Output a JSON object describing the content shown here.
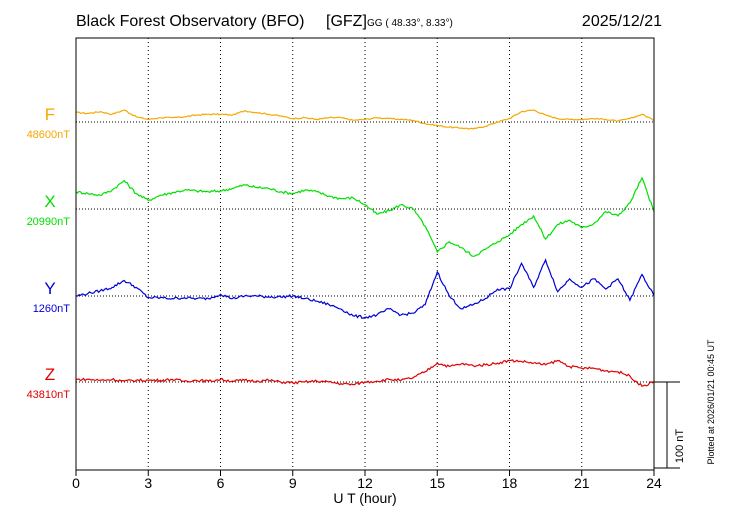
{
  "header": {
    "station": "Black Forest Observatory (BFO)",
    "agency": "[GFZ]",
    "coords": "GG ( 48.33°,   8.33°)",
    "date": "2025/12/21"
  },
  "footer_note": "Plotted at 2026/01/21 00:45 UT",
  "scale_label": "100 nT",
  "colors": {
    "F": "#f5a800",
    "X": "#00e000",
    "Y": "#0000d8",
    "Z": "#e00000",
    "axis": "#000000"
  },
  "chart_data": {
    "type": "line",
    "title": "Black Forest Observatory (BFO)",
    "xlabel": "U T (hour)",
    "ylabel": "",
    "xlim": [
      0,
      24
    ],
    "x_ticks": [
      "0",
      "3",
      "6",
      "9",
      "12",
      "15",
      "18",
      "21",
      "24"
    ],
    "grid": true,
    "scale_bar_nT": 100,
    "series": [
      {
        "name": "F",
        "baseline_label": "48600nT",
        "baseline_nT": 48600,
        "x": [
          0,
          0.5,
          1,
          1.5,
          2,
          2.5,
          3,
          3.5,
          4,
          4.5,
          5,
          5.5,
          6,
          6.5,
          7,
          7.5,
          8,
          8.5,
          9,
          9.5,
          10,
          10.5,
          11,
          11.5,
          12,
          12.5,
          13,
          13.5,
          14,
          14.5,
          15,
          15.5,
          16,
          16.5,
          17,
          17.5,
          18,
          18.5,
          19,
          19.5,
          20,
          20.5,
          21,
          21.5,
          22,
          22.5,
          23,
          23.5,
          24
        ],
        "y": [
          11,
          10,
          12,
          9,
          14,
          6,
          3,
          5,
          5,
          6,
          8,
          9,
          9,
          8,
          13,
          11,
          9,
          7,
          4,
          5,
          3,
          5,
          5,
          2,
          3,
          5,
          4,
          3,
          2,
          -2,
          -4,
          -6,
          -7,
          -8,
          -5,
          0,
          4,
          12,
          14,
          8,
          4,
          3,
          3,
          4,
          3,
          1,
          4,
          9,
          2
        ]
      },
      {
        "name": "X",
        "baseline_label": "20990nT",
        "baseline_nT": 20990,
        "x": [
          0,
          0.5,
          1,
          1.5,
          2,
          2.5,
          3,
          3.5,
          4,
          4.5,
          5,
          5.5,
          6,
          6.5,
          7,
          7.5,
          8,
          8.5,
          9,
          9.5,
          10,
          10.5,
          11,
          11.5,
          12,
          12.5,
          13,
          13.5,
          14,
          14.5,
          15,
          15.5,
          16,
          16.5,
          17,
          17.5,
          18,
          18.5,
          19,
          19.5,
          20,
          20.5,
          21,
          21.5,
          22,
          22.5,
          23,
          23.5,
          24
        ],
        "y": [
          20,
          18,
          16,
          22,
          33,
          18,
          10,
          16,
          19,
          22,
          21,
          20,
          21,
          24,
          28,
          25,
          24,
          20,
          18,
          22,
          20,
          15,
          12,
          13,
          5,
          -6,
          -2,
          5,
          0,
          -20,
          -50,
          -38,
          -45,
          -55,
          -47,
          -38,
          -30,
          -18,
          -8,
          -35,
          -18,
          -13,
          -22,
          -17,
          -3,
          -8,
          7,
          36,
          -3
        ]
      },
      {
        "name": "Y",
        "baseline_label": "1260nT",
        "baseline_nT": 1260,
        "x": [
          0,
          0.5,
          1,
          1.5,
          2,
          2.5,
          3,
          3.5,
          4,
          4.5,
          5,
          5.5,
          6,
          6.5,
          7,
          7.5,
          8,
          8.5,
          9,
          9.5,
          10,
          10.5,
          11,
          11.5,
          12,
          12.5,
          13,
          13.5,
          14,
          14.5,
          15,
          15.5,
          16,
          16.5,
          17,
          17.5,
          18,
          18.5,
          19,
          19.5,
          20,
          20.5,
          21,
          21.5,
          22,
          22.5,
          23,
          23.5,
          24
        ],
        "y": [
          0,
          3,
          6,
          10,
          18,
          10,
          -2,
          -2,
          -3,
          -2,
          -3,
          -3,
          2,
          -3,
          0,
          0,
          -1,
          -1,
          0,
          -3,
          -6,
          -10,
          -15,
          -23,
          -25,
          -22,
          -15,
          -22,
          -20,
          -10,
          28,
          0,
          -15,
          -10,
          -3,
          8,
          8,
          38,
          10,
          42,
          5,
          20,
          10,
          20,
          8,
          20,
          -5,
          25,
          0
        ]
      },
      {
        "name": "Z",
        "baseline_label": "43810nT",
        "baseline_nT": 43810,
        "x": [
          0,
          0.5,
          1,
          1.5,
          2,
          2.5,
          3,
          3.5,
          4,
          4.5,
          5,
          5.5,
          6,
          6.5,
          7,
          7.5,
          8,
          8.5,
          9,
          9.5,
          10,
          10.5,
          11,
          11.5,
          12,
          12.5,
          13,
          13.5,
          14,
          14.5,
          15,
          15.5,
          16,
          16.5,
          17,
          17.5,
          18,
          18.5,
          19,
          19.5,
          20,
          20.5,
          21,
          21.5,
          22,
          22.5,
          23,
          23.5,
          24
        ],
        "y": [
          3,
          3,
          2,
          3,
          1,
          2,
          2,
          2,
          3,
          1,
          2,
          1,
          3,
          1,
          2,
          1,
          2,
          0,
          -1,
          0,
          1,
          0,
          -2,
          -3,
          0,
          1,
          3,
          2,
          5,
          12,
          22,
          18,
          21,
          19,
          20,
          22,
          25,
          24,
          22,
          20,
          25,
          18,
          16,
          16,
          13,
          12,
          7,
          -5,
          0
        ]
      }
    ]
  }
}
